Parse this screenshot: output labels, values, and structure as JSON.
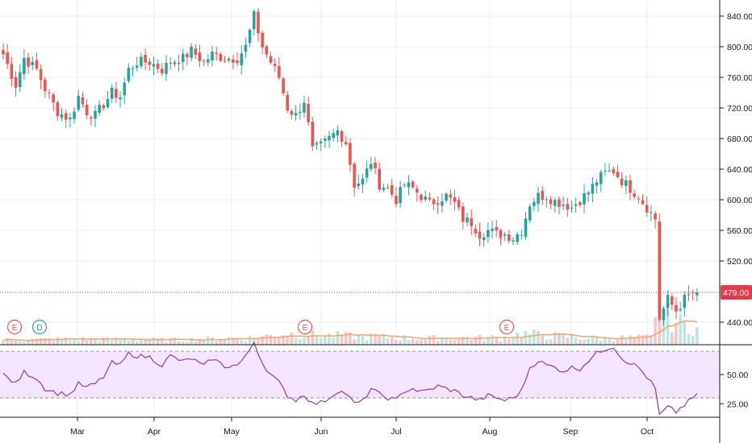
{
  "chart_data": {
    "type": "candlestick",
    "price_axis": {
      "ylim": [
        410,
        850
      ],
      "ticks": [
        "840.00",
        "800.00",
        "760.00",
        "720.00",
        "680.00",
        "640.00",
        "600.00",
        "560.00",
        "520.00",
        "440.00"
      ]
    },
    "rsi_axis": {
      "ylim": [
        0,
        100
      ],
      "ticks": [
        "50.00",
        "25.00"
      ],
      "band": [
        30,
        70
      ]
    },
    "months": [
      "Mar",
      "Apr",
      "May",
      "Jun",
      "Jul",
      "Aug",
      "Sep",
      "Oct"
    ],
    "last_price": {
      "value": 479,
      "label": "479.00"
    },
    "events": [
      {
        "label": "E",
        "kind": "earnings"
      },
      {
        "label": "D",
        "kind": "dividend"
      },
      {
        "label": "E",
        "kind": "earnings"
      },
      {
        "label": "E",
        "kind": "earnings"
      }
    ],
    "anchors": [
      [
        0,
        790
      ],
      [
        3,
        750
      ],
      [
        5,
        785
      ],
      [
        8,
        770
      ],
      [
        10,
        745
      ],
      [
        13,
        715
      ],
      [
        16,
        705
      ],
      [
        18,
        735
      ],
      [
        20,
        715
      ],
      [
        22,
        710
      ],
      [
        24,
        725
      ],
      [
        26,
        740
      ],
      [
        28,
        735
      ],
      [
        30,
        770
      ],
      [
        32,
        780
      ],
      [
        35,
        780
      ],
      [
        38,
        770
      ],
      [
        40,
        780
      ],
      [
        43,
        785
      ],
      [
        45,
        795
      ],
      [
        48,
        780
      ],
      [
        50,
        790
      ],
      [
        53,
        785
      ],
      [
        56,
        785
      ],
      [
        58,
        800
      ],
      [
        60,
        840
      ],
      [
        62,
        800
      ],
      [
        64,
        780
      ],
      [
        66,
        760
      ],
      [
        68,
        720
      ],
      [
        70,
        710
      ],
      [
        72,
        730
      ],
      [
        74,
        665
      ],
      [
        76,
        670
      ],
      [
        78,
        680
      ],
      [
        80,
        690
      ],
      [
        82,
        675
      ],
      [
        84,
        620
      ],
      [
        86,
        625
      ],
      [
        88,
        650
      ],
      [
        90,
        620
      ],
      [
        92,
        615
      ],
      [
        94,
        600
      ],
      [
        96,
        620
      ],
      [
        98,
        615
      ],
      [
        100,
        605
      ],
      [
        102,
        595
      ],
      [
        104,
        600
      ],
      [
        106,
        605
      ],
      [
        108,
        595
      ],
      [
        110,
        575
      ],
      [
        112,
        570
      ],
      [
        114,
        555
      ],
      [
        116,
        560
      ],
      [
        118,
        555
      ],
      [
        120,
        555
      ],
      [
        122,
        550
      ],
      [
        124,
        560
      ],
      [
        126,
        595
      ],
      [
        128,
        605
      ],
      [
        130,
        605
      ],
      [
        132,
        598
      ],
      [
        134,
        595
      ],
      [
        136,
        590
      ],
      [
        138,
        600
      ],
      [
        140,
        610
      ],
      [
        142,
        625
      ],
      [
        144,
        635
      ],
      [
        146,
        638
      ],
      [
        148,
        625
      ],
      [
        150,
        615
      ],
      [
        152,
        605
      ],
      [
        154,
        590
      ],
      [
        156,
        575
      ],
      [
        157,
        445
      ],
      [
        159,
        470
      ],
      [
        161,
        455
      ],
      [
        163,
        470
      ],
      [
        165,
        478
      ],
      [
        166,
        479
      ]
    ],
    "volume_anchors": [
      [
        0,
        6
      ],
      [
        20,
        7
      ],
      [
        40,
        6
      ],
      [
        60,
        9
      ],
      [
        68,
        14
      ],
      [
        75,
        12
      ],
      [
        88,
        10
      ],
      [
        100,
        8
      ],
      [
        120,
        9
      ],
      [
        124,
        14
      ],
      [
        140,
        8
      ],
      [
        155,
        9
      ],
      [
        157,
        45
      ],
      [
        160,
        30
      ],
      [
        166,
        20
      ]
    ],
    "rsi_anchors": [
      [
        0,
        50
      ],
      [
        3,
        42
      ],
      [
        5,
        52
      ],
      [
        8,
        47
      ],
      [
        10,
        38
      ],
      [
        13,
        34
      ],
      [
        16,
        33
      ],
      [
        18,
        42
      ],
      [
        20,
        39
      ],
      [
        22,
        42
      ],
      [
        24,
        48
      ],
      [
        26,
        60
      ],
      [
        28,
        58
      ],
      [
        30,
        68
      ],
      [
        32,
        66
      ],
      [
        35,
        65
      ],
      [
        38,
        58
      ],
      [
        40,
        66
      ],
      [
        43,
        61
      ],
      [
        45,
        64
      ],
      [
        48,
        57
      ],
      [
        50,
        64
      ],
      [
        53,
        57
      ],
      [
        56,
        58
      ],
      [
        58,
        65
      ],
      [
        60,
        78
      ],
      [
        62,
        60
      ],
      [
        64,
        50
      ],
      [
        66,
        43
      ],
      [
        68,
        32
      ],
      [
        70,
        28
      ],
      [
        72,
        33
      ],
      [
        74,
        25
      ],
      [
        76,
        26
      ],
      [
        78,
        30
      ],
      [
        80,
        36
      ],
      [
        82,
        34
      ],
      [
        84,
        25
      ],
      [
        86,
        27
      ],
      [
        88,
        38
      ],
      [
        90,
        33
      ],
      [
        92,
        30
      ],
      [
        94,
        28
      ],
      [
        96,
        36
      ],
      [
        98,
        38
      ],
      [
        100,
        35
      ],
      [
        102,
        37
      ],
      [
        104,
        40
      ],
      [
        106,
        38
      ],
      [
        108,
        36
      ],
      [
        110,
        32
      ],
      [
        112,
        30
      ],
      [
        114,
        28
      ],
      [
        116,
        32
      ],
      [
        118,
        30
      ],
      [
        120,
        28
      ],
      [
        122,
        30
      ],
      [
        124,
        36
      ],
      [
        126,
        56
      ],
      [
        128,
        62
      ],
      [
        130,
        58
      ],
      [
        132,
        56
      ],
      [
        134,
        53
      ],
      [
        136,
        56
      ],
      [
        138,
        55
      ],
      [
        140,
        62
      ],
      [
        142,
        68
      ],
      [
        144,
        72
      ],
      [
        146,
        74
      ],
      [
        148,
        64
      ],
      [
        150,
        60
      ],
      [
        152,
        56
      ],
      [
        154,
        48
      ],
      [
        156,
        38
      ],
      [
        157,
        15
      ],
      [
        159,
        22
      ],
      [
        161,
        18
      ],
      [
        163,
        24
      ],
      [
        165,
        30
      ],
      [
        166,
        32
      ]
    ]
  }
}
